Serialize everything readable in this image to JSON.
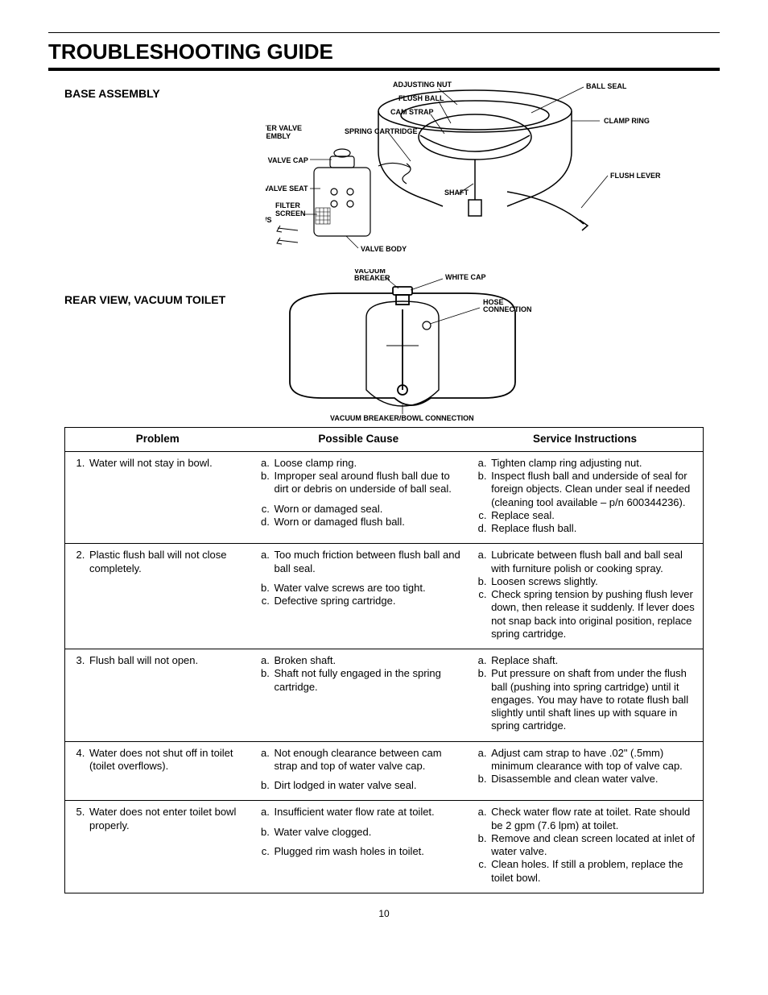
{
  "title": "TROUBLESHOOTING GUIDE",
  "section1_label": "BASE ASSEMBLY",
  "section2_label": "REAR VIEW, VACUUM TOILET",
  "page_number": "10",
  "diagram1": {
    "adjusting_nut": "ADJUSTING NUT",
    "flush_ball": "FLUSH BALL",
    "cam_strap": "CAM STRAP",
    "ball_seal": "BALL SEAL",
    "clamp_ring": "CLAMP RING",
    "water_valve_assembly": "WATER VALVE\nASSEMBLY",
    "spring_cartridge": "SPRING CARTRIDGE",
    "top_valve_cap": "TOP VALVE CAP",
    "valve_seat": "VALVE SEAT",
    "water_valve_screws": "WATER\nVALVE\nSCREWS",
    "filter_screen": "FILTER\nSCREEN",
    "valve_body": "VALVE BODY",
    "shaft": "SHAFT",
    "flush_lever": "FLUSH LEVER"
  },
  "diagram2": {
    "vacuum_breaker": "VACUUM\nBREAKER",
    "white_cap": "WHITE CAP",
    "hose_connection": "HOSE\nCONNECTION",
    "bottom_label": "VACUUM BREAKER/BOWL CONNECTION"
  },
  "table": {
    "headers": {
      "problem": "Problem",
      "cause": "Possible Cause",
      "service": "Service Instructions"
    },
    "rows": [
      {
        "n": 1,
        "problem": "Water will not stay in bowl.",
        "causes": [
          "Loose clamp ring.",
          "Improper seal around flush ball due to dirt or debris on underside of  ball seal.",
          "Worn or damaged seal.",
          "Worn or damaged flush ball."
        ],
        "gap_after": 2,
        "services": [
          "Tighten clamp ring adjusting nut.",
          "Inspect flush ball and underside of seal for foreign objects. Clean under seal if needed (cleaning tool available – p/n 600344236).",
          "Replace seal.",
          "Replace flush ball."
        ]
      },
      {
        "n": 2,
        "problem": "Plastic flush ball will not close completely.",
        "causes": [
          "Too much friction between flush ball and ball seal.",
          "Water valve screws are too tight.",
          "Defective spring cartridge."
        ],
        "gap_after": 1,
        "services": [
          "Lubricate between flush ball and ball seal with furniture polish or cooking spray.",
          "Loosen screws slightly.",
          "Check spring tension by pushing flush lever down, then release it suddenly. If lever does not snap back into original position, replace spring cartridge."
        ]
      },
      {
        "n": 3,
        "problem": "Flush ball will not open.",
        "causes": [
          "Broken shaft.",
          "Shaft not fully engaged in the spring cartridge."
        ],
        "services": [
          "Replace shaft.",
          "Put pressure on shaft from under the flush ball (pushing into spring cartridge) until it engages. You may have to rotate flush ball slightly until shaft lines up with square in spring cartridge."
        ]
      },
      {
        "n": 4,
        "problem": "Water does not shut off in toilet (toilet overflows).",
        "causes": [
          "Not enough clearance between cam strap and top of water valve cap.",
          "Dirt lodged in water valve seal."
        ],
        "gap_after": 1,
        "services": [
          "Adjust cam strap to have .02\" (.5mm) minimum clearance with top of valve cap.",
          "Disassemble and clean water valve."
        ]
      },
      {
        "n": 5,
        "problem": "Water does not enter toilet bowl properly.",
        "causes": [
          "Insufficient water flow rate at toilet.",
          "Water valve clogged.",
          "Plugged rim wash holes in toilet."
        ],
        "spaced": true,
        "services": [
          "Check water flow rate at toilet. Rate should be 2 gpm (7.6 lpm) at toilet.",
          "Remove and clean screen located at inlet of water valve.",
          "Clean holes. If still a problem, replace the toilet bowl."
        ]
      }
    ]
  }
}
